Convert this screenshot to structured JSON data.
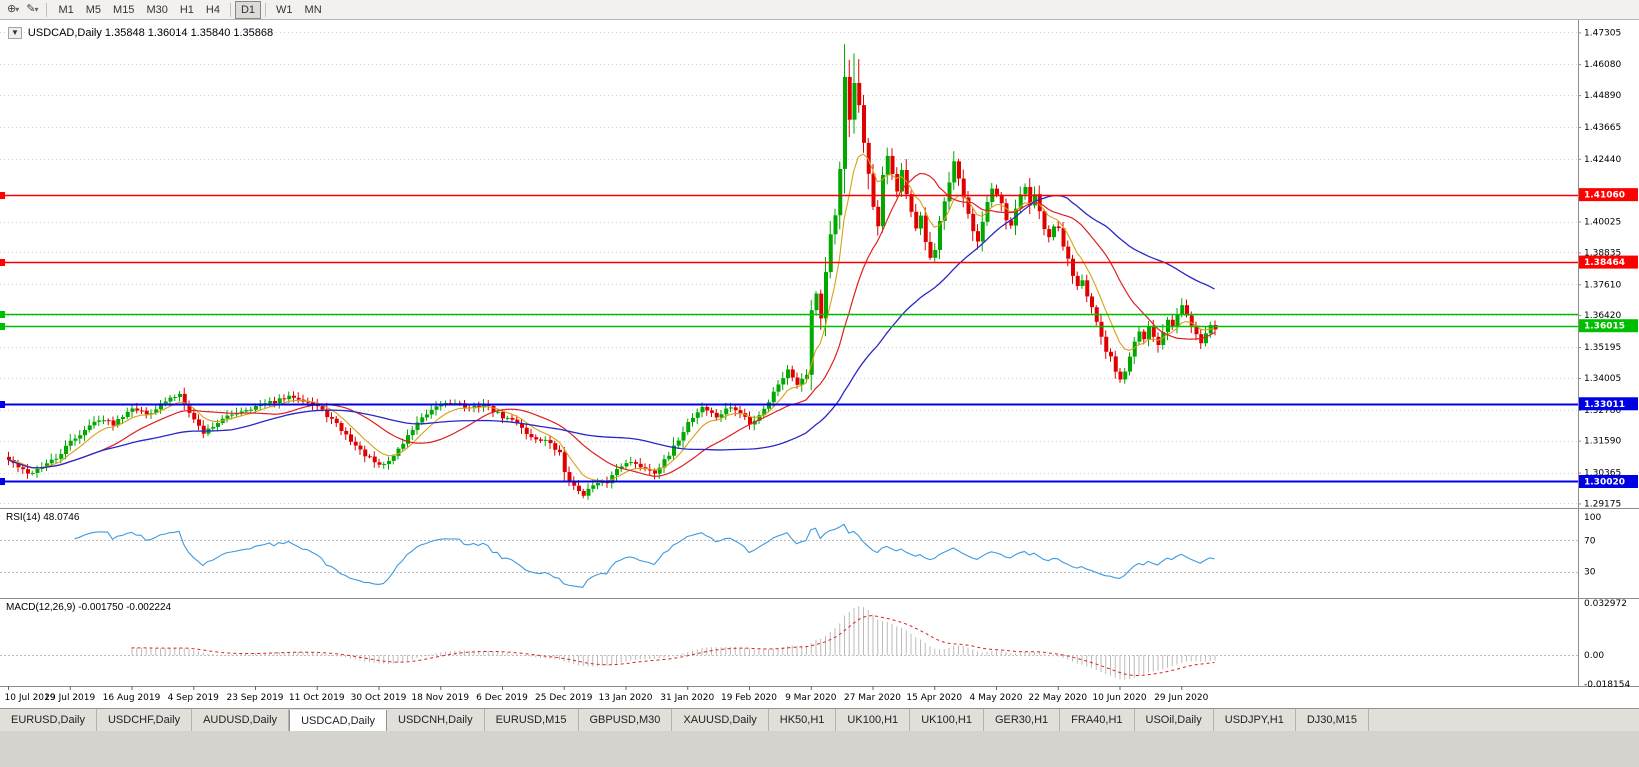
{
  "toolbar": {
    "icons": [
      {
        "name": "crosshair-icon",
        "glyph": "⊕"
      },
      {
        "name": "pencil-icon",
        "glyph": "✎"
      }
    ],
    "timeframes": [
      "M1",
      "M5",
      "M15",
      "M30",
      "H1",
      "H4",
      "D1",
      "W1",
      "MN"
    ],
    "active_timeframe": "D1"
  },
  "header": {
    "menu_icon": "▼",
    "title": "USDCAD,Daily  1.35848 1.36014 1.35840 1.35868"
  },
  "chart_data": {
    "type": "candlestick",
    "symbol": "USDCAD",
    "timeframe": "Daily",
    "ohlc_display": {
      "open": "1.35848",
      "high": "1.36014",
      "low": "1.35840",
      "close": "1.35868"
    },
    "scale": {
      "price_min": 1.29,
      "price_max": 1.4755,
      "bars": 255
    },
    "price_axis_labels": [
      "1.47305",
      "1.46080",
      "1.44890",
      "1.43665",
      "1.42440",
      "1.40025",
      "1.38835",
      "1.37610",
      "1.36420",
      "1.35195",
      "1.34005",
      "1.32780",
      "1.31590",
      "1.30365",
      "1.29175"
    ],
    "date_axis_labels": [
      {
        "text": "10 Jul 2019",
        "bar": 0
      },
      {
        "text": "29 Jul 2019",
        "bar": 13
      },
      {
        "text": "16 Aug 2019",
        "bar": 26
      },
      {
        "text": "4 Sep 2019",
        "bar": 39
      },
      {
        "text": "23 Sep 2019",
        "bar": 52
      },
      {
        "text": "11 Oct 2019",
        "bar": 65
      },
      {
        "text": "30 Oct 2019",
        "bar": 78
      },
      {
        "text": "18 Nov 2019",
        "bar": 91
      },
      {
        "text": "6 Dec 2019",
        "bar": 104
      },
      {
        "text": "25 Dec 2019",
        "bar": 117
      },
      {
        "text": "13 Jan 2020",
        "bar": 130
      },
      {
        "text": "31 Jan 2020",
        "bar": 143
      },
      {
        "text": "19 Feb 2020",
        "bar": 156
      },
      {
        "text": "9 Mar 2020",
        "bar": 169
      },
      {
        "text": "27 Mar 2020",
        "bar": 182
      },
      {
        "text": "15 Apr 2020",
        "bar": 195
      },
      {
        "text": "4 May 2020",
        "bar": 208
      },
      {
        "text": "22 May 2020",
        "bar": 221
      },
      {
        "text": "10 Jun 2020",
        "bar": 234
      },
      {
        "text": "29 Jun 2020",
        "bar": 247
      }
    ],
    "hlines": [
      {
        "value": 1.4106,
        "badge": "1.41060",
        "color": "#FF0000",
        "lw": 1.5
      },
      {
        "value": 1.38464,
        "badge": "1.38464",
        "color": "#FF0000",
        "lw": 1.5
      },
      {
        "value": 1.3645,
        "badge": null,
        "color": "#00BE00",
        "lw": 1.5
      },
      {
        "value": 1.36015,
        "badge": "1.36015",
        "color": "#00BE00",
        "lw": 1.5
      },
      {
        "value": 1.33011,
        "badge": "1.33011",
        "color": "#0000E6",
        "lw": 2
      },
      {
        "value": 1.3002,
        "badge": "1.30020",
        "color": "#0000E6",
        "lw": 2
      }
    ],
    "moving_averages": [
      {
        "name": "fast",
        "period": 8,
        "method": "ema",
        "color": "#D8A018"
      },
      {
        "name": "mid",
        "period": 20,
        "method": "sma",
        "color": "#E02020"
      },
      {
        "name": "slow",
        "period": 48,
        "method": "sma",
        "color": "#2828C8"
      }
    ],
    "candles": {
      "up_color": "#00A800",
      "down_color": "#E00000",
      "close_anchors": [
        [
          0,
          1.3085
        ],
        [
          4,
          1.303
        ],
        [
          7,
          1.306
        ],
        [
          10,
          1.309
        ],
        [
          13,
          1.3155
        ],
        [
          16,
          1.32
        ],
        [
          19,
          1.3245
        ],
        [
          22,
          1.3225
        ],
        [
          26,
          1.329
        ],
        [
          29,
          1.326
        ],
        [
          33,
          1.331
        ],
        [
          36,
          1.334
        ],
        [
          39,
          1.324
        ],
        [
          41,
          1.319
        ],
        [
          44,
          1.323
        ],
        [
          48,
          1.327
        ],
        [
          52,
          1.329
        ],
        [
          56,
          1.331
        ],
        [
          60,
          1.333
        ],
        [
          63,
          1.331
        ],
        [
          65,
          1.329
        ],
        [
          68,
          1.324
        ],
        [
          71,
          1.318
        ],
        [
          74,
          1.312
        ],
        [
          78,
          1.306
        ],
        [
          80,
          1.308
        ],
        [
          83,
          1.315
        ],
        [
          86,
          1.323
        ],
        [
          89,
          1.327
        ],
        [
          91,
          1.33
        ],
        [
          94,
          1.331
        ],
        [
          97,
          1.328
        ],
        [
          100,
          1.33
        ],
        [
          104,
          1.325
        ],
        [
          107,
          1.323
        ],
        [
          110,
          1.317
        ],
        [
          113,
          1.316
        ],
        [
          116,
          1.311
        ],
        [
          117,
          1.304
        ],
        [
          119,
          1.298
        ],
        [
          121,
          1.2955
        ],
        [
          123,
          1.2985
        ],
        [
          126,
          1.3
        ],
        [
          128,
          1.305
        ],
        [
          130,
          1.308
        ],
        [
          133,
          1.306
        ],
        [
          136,
          1.304
        ],
        [
          139,
          1.31
        ],
        [
          143,
          1.323
        ],
        [
          146,
          1.329
        ],
        [
          149,
          1.325
        ],
        [
          152,
          1.329
        ],
        [
          155,
          1.325
        ],
        [
          156,
          1.322
        ],
        [
          158,
          1.326
        ],
        [
          160,
          1.331
        ],
        [
          162,
          1.338
        ],
        [
          164,
          1.343
        ],
        [
          166,
          1.338
        ],
        [
          168,
          1.342
        ],
        [
          169,
          1.366
        ],
        [
          170,
          1.373
        ],
        [
          171,
          1.363
        ],
        [
          172,
          1.381
        ],
        [
          173,
          1.395
        ],
        [
          174,
          1.402
        ],
        [
          175,
          1.42
        ],
        [
          176,
          1.456
        ],
        [
          177,
          1.44
        ],
        [
          178,
          1.453
        ],
        [
          179,
          1.445
        ],
        [
          180,
          1.43
        ],
        [
          181,
          1.418
        ],
        [
          182,
          1.406
        ],
        [
          183,
          1.399
        ],
        [
          184,
          1.418
        ],
        [
          185,
          1.425
        ],
        [
          186,
          1.419
        ],
        [
          187,
          1.412
        ],
        [
          188,
          1.42
        ],
        [
          189,
          1.41
        ],
        [
          190,
          1.404
        ],
        [
          191,
          1.397
        ],
        [
          192,
          1.402
        ],
        [
          193,
          1.392
        ],
        [
          194,
          1.387
        ],
        [
          195,
          1.39
        ],
        [
          196,
          1.401
        ],
        [
          197,
          1.408
        ],
        [
          198,
          1.415
        ],
        [
          199,
          1.423
        ],
        [
          200,
          1.416
        ],
        [
          201,
          1.409
        ],
        [
          202,
          1.403
        ],
        [
          203,
          1.396
        ],
        [
          204,
          1.392
        ],
        [
          205,
          1.4
        ],
        [
          206,
          1.408
        ],
        [
          207,
          1.413
        ],
        [
          208,
          1.41
        ],
        [
          209,
          1.407
        ],
        [
          210,
          1.401
        ],
        [
          211,
          1.398
        ],
        [
          212,
          1.405
        ],
        [
          213,
          1.411
        ],
        [
          214,
          1.413
        ],
        [
          215,
          1.407
        ],
        [
          216,
          1.411
        ],
        [
          217,
          1.405
        ],
        [
          218,
          1.398
        ],
        [
          219,
          1.394
        ],
        [
          220,
          1.398
        ],
        [
          221,
          1.397
        ],
        [
          222,
          1.39
        ],
        [
          223,
          1.386
        ],
        [
          224,
          1.379
        ],
        [
          225,
          1.376
        ],
        [
          226,
          1.378
        ],
        [
          227,
          1.372
        ],
        [
          228,
          1.368
        ],
        [
          229,
          1.362
        ],
        [
          230,
          1.356
        ],
        [
          231,
          1.35
        ],
        [
          232,
          1.348
        ],
        [
          233,
          1.342
        ],
        [
          234,
          1.339
        ],
        [
          235,
          1.343
        ],
        [
          236,
          1.348
        ],
        [
          237,
          1.354
        ],
        [
          238,
          1.358
        ],
        [
          239,
          1.355
        ],
        [
          240,
          1.36
        ],
        [
          241,
          1.356
        ],
        [
          242,
          1.353
        ],
        [
          243,
          1.358
        ],
        [
          244,
          1.363
        ],
        [
          245,
          1.36
        ],
        [
          246,
          1.365
        ],
        [
          247,
          1.368
        ],
        [
          248,
          1.364
        ],
        [
          249,
          1.36
        ],
        [
          250,
          1.357
        ],
        [
          251,
          1.354
        ],
        [
          252,
          1.358
        ],
        [
          253,
          1.361
        ],
        [
          254,
          1.3587
        ]
      ]
    },
    "rsi": {
      "label": "RSI(14) 48.0746",
      "period": 14,
      "value": 48.0746,
      "color": "#3E9ADE",
      "levels": [
        {
          "text": "100",
          "v": 100
        },
        {
          "text": "70",
          "v": 70
        },
        {
          "text": "30",
          "v": 30
        }
      ]
    },
    "macd": {
      "label": "MACD(12,26,9) -0.001750 -0.002224",
      "fast": 12,
      "slow": 26,
      "signal": 9,
      "main_value": -0.00175,
      "signal_value": -0.002224,
      "hist_color": "#BBBBBB",
      "signal_color": "#E02020",
      "vmax": 0.035,
      "vmin": -0.0195,
      "levels": [
        {
          "text": "0.032972",
          "v": 0.032972
        },
        {
          "text": "0.00",
          "v": 0
        },
        {
          "text": "-0.018154",
          "v": -0.018154
        }
      ]
    }
  },
  "tabs": {
    "items": [
      "EURUSD,Daily",
      "USDCHF,Daily",
      "AUDUSD,Daily",
      "USDCAD,Daily",
      "USDCNH,Daily",
      "EURUSD,M15",
      "GBPUSD,M30",
      "XAUUSD,Daily",
      "HK50,H1",
      "UK100,H1",
      "UK100,H1",
      "GER30,H1",
      "FRA40,H1",
      "USOil,Daily",
      "USDJPY,H1",
      "DJ30,M15"
    ],
    "active_index": 3
  }
}
